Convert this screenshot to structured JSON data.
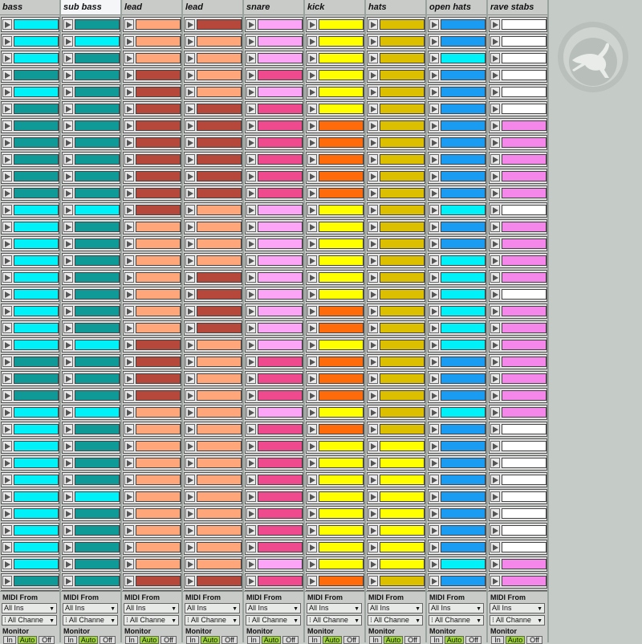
{
  "tracks": [
    {
      "name": "bass",
      "selected": false,
      "slots": [
        "lc",
        "lc",
        "lc",
        "dc",
        "lc",
        "dc",
        "dc",
        "dc",
        "dc",
        "dc",
        "dc",
        "lc",
        "lc",
        "lc",
        "lc",
        "lc",
        "lc",
        "lc",
        "lc",
        "lc",
        "dc",
        "dc",
        "dc",
        "lc",
        "lc",
        "lc",
        "lc",
        "lc",
        "lc",
        "lc",
        "lc",
        "lc",
        "lc",
        "dc",
        "dc"
      ],
      "io": {
        "midi_from_label": "MIDI From",
        "input": "All Ins",
        "channel": "All Channe",
        "monitor_label": "Monitor",
        "monitor": [
          "In",
          "Auto",
          "Off"
        ],
        "monitor_active": "Auto"
      }
    },
    {
      "name": "sub bass",
      "selected": true,
      "slots": [
        "dc",
        "lc",
        "dc",
        "dc",
        "dc",
        "dc",
        "dc",
        "dc",
        "dc",
        "dc",
        "dc",
        "lc",
        "dc",
        "dc",
        "dc",
        "dc",
        "dc",
        "dc",
        "dc",
        "lc",
        "dc",
        "dc",
        "dc",
        "lc",
        "dc",
        "dc",
        "dc",
        "dc",
        "lc",
        "dc",
        "dc",
        "dc",
        "dc",
        "dc",
        "dc"
      ],
      "io": {
        "midi_from_label": "MIDI From",
        "input": "All Ins",
        "channel": "All Channe",
        "monitor_label": "Monitor",
        "monitor": [
          "In",
          "Auto",
          "Off"
        ],
        "monitor_active": "Auto"
      }
    },
    {
      "name": "lead",
      "selected": false,
      "slots": [
        "sa",
        "sa",
        "sa",
        "br",
        "br",
        "br",
        "br",
        "br",
        "br",
        "br",
        "br",
        "br",
        "sa",
        "sa",
        "sa",
        "sa",
        "sa",
        "sa",
        "sa",
        "br",
        "br",
        "br",
        "br",
        "sa",
        "sa",
        "sa",
        "sa",
        "sa",
        "sa",
        "sa",
        "sa",
        "sa",
        "sa",
        "br",
        "br"
      ],
      "io": {
        "midi_from_label": "MIDI From",
        "input": "All Ins",
        "channel": "All Channe",
        "monitor_label": "Monitor",
        "monitor": [
          "In",
          "Auto",
          "Off"
        ],
        "monitor_active": "Auto"
      }
    },
    {
      "name": "lead",
      "selected": false,
      "slots": [
        "br",
        "sa",
        "sa",
        "sa",
        "sa",
        "br",
        "br",
        "br",
        "br",
        "br",
        "br",
        "sa",
        "sa",
        "sa",
        "sa",
        "br",
        "br",
        "br",
        "br",
        "sa",
        "sa",
        "sa",
        "sa",
        "sa",
        "sa",
        "sa",
        "sa",
        "sa",
        "sa",
        "sa",
        "sa",
        "sa",
        "sa",
        "br",
        "br"
      ],
      "io": {
        "midi_from_label": "MIDI From",
        "input": "All Ins",
        "channel": "All Channe",
        "monitor_label": "Monitor",
        "monitor": [
          "In",
          "Auto",
          "Off"
        ],
        "monitor_active": "Auto"
      }
    },
    {
      "name": "snare",
      "selected": false,
      "slots": [
        "lp",
        "lp",
        "lp",
        "dp",
        "lp",
        "dp",
        "dp",
        "dp",
        "dp",
        "dp",
        "dp",
        "lp",
        "lp",
        "lp",
        "lp",
        "lp",
        "lp",
        "lp",
        "lp",
        "lp",
        "dp",
        "dp",
        "dp",
        "lp",
        "dp",
        "dp",
        "dp",
        "dp",
        "dp",
        "dp",
        "dp",
        "dp",
        "lp",
        "dp",
        "dp"
      ],
      "io": {
        "midi_from_label": "MIDI From",
        "input": "All Ins",
        "channel": "All Channe",
        "monitor_label": "Monitor",
        "monitor": [
          "In",
          "Auto",
          "Off"
        ],
        "monitor_active": "Auto"
      }
    },
    {
      "name": "kick",
      "selected": false,
      "slots": [
        "ye",
        "ye",
        "ye",
        "ye",
        "ye",
        "ye",
        "or",
        "or",
        "or",
        "or",
        "or",
        "ye",
        "ye",
        "ye",
        "ye",
        "ye",
        "ye",
        "or",
        "or",
        "ye",
        "or",
        "or",
        "or",
        "ye",
        "or",
        "ye",
        "ye",
        "ye",
        "ye",
        "ye",
        "ye",
        "ye",
        "ye",
        "or",
        "or"
      ],
      "io": {
        "midi_from_label": "MIDI From",
        "input": "All Ins",
        "channel": "All Channe",
        "monitor_label": "Monitor",
        "monitor": [
          "In",
          "Auto",
          "Off"
        ],
        "monitor_active": "Auto"
      }
    },
    {
      "name": "hats",
      "selected": false,
      "slots": [
        "dy",
        "dy",
        "dy",
        "dy",
        "dy",
        "dy",
        "dy",
        "dy",
        "dy",
        "dy",
        "dy",
        "dy",
        "dy",
        "dy",
        "dy",
        "dy",
        "dy",
        "dy",
        "dy",
        "dy",
        "dy",
        "dy",
        "dy",
        "dy",
        "dy",
        "ye",
        "ye",
        "ye",
        "ye",
        "ye",
        "ye",
        "ye",
        "ye",
        "dy",
        "dy"
      ],
      "io": {
        "midi_from_label": "MIDI From",
        "input": "All Ins",
        "channel": "All Channe",
        "monitor_label": "Monitor",
        "monitor": [
          "In",
          "Auto",
          "Off"
        ],
        "monitor_active": "Auto"
      }
    },
    {
      "name": "open hats",
      "selected": false,
      "slots": [
        "bl",
        "bl",
        "lc",
        "bl",
        "bl",
        "bl",
        "bl",
        "bl",
        "bl",
        "bl",
        "bl",
        "lc",
        "bl",
        "bl",
        "lc",
        "lc",
        "lc",
        "lc",
        "lc",
        "lc",
        "bl",
        "bl",
        "bl",
        "lc",
        "bl",
        "bl",
        "bl",
        "bl",
        "bl",
        "bl",
        "bl",
        "bl",
        "lc",
        "bl",
        "bl"
      ],
      "io": {
        "midi_from_label": "MIDI From",
        "input": "All Ins",
        "channel": "All Channe",
        "monitor_label": "Monitor",
        "monitor": [
          "In",
          "Auto",
          "Off"
        ],
        "monitor_active": "Auto"
      }
    },
    {
      "name": "rave stabs",
      "selected": false,
      "slots": [
        "wh",
        "wh",
        "wh",
        "wh",
        "wh",
        "wh",
        "pk",
        "pk",
        "pk",
        "pk",
        "pk",
        "wh",
        "pk",
        "pk",
        "pk",
        "pk",
        "wh",
        "pk",
        "pk",
        "pk",
        "pk",
        "pk",
        "pk",
        "pk",
        "wh",
        "wh",
        "wh",
        "wh",
        "wh",
        "wh",
        "wh",
        "wh",
        "pk",
        "pk",
        "pk"
      ],
      "io": {
        "midi_from_label": "MIDI From",
        "input": "All Ins",
        "channel": "All Channe",
        "monitor_label": "Monitor",
        "monitor": [
          "In",
          "Auto",
          "Off"
        ],
        "monitor_active": "Auto"
      }
    }
  ],
  "clip_colors": {
    "lc": "#00f2f8",
    "dc": "#0f9a98",
    "sa": "#ffa77b",
    "br": "#b6483b",
    "lp": "#fca4f6",
    "dp": "#ef4a8e",
    "ye": "#ffff00",
    "or": "#ff6a0b",
    "dy": "#dcc000",
    "bl": "#1a9cf2",
    "pk": "#f687ea",
    "wh": "#ffffff"
  },
  "logo": {
    "icon": "kangaroo-icon"
  }
}
